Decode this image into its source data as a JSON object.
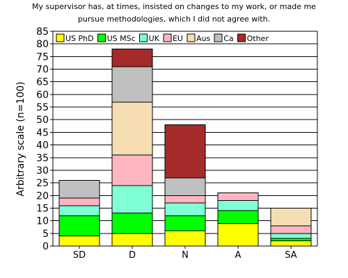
{
  "chart_data": {
    "type": "bar",
    "stacked": true,
    "title": [
      "My supervisor has, at times, insisted on changes to my work, or made me",
      "pursue methodologies, which I did not agree with."
    ],
    "xlabel": "",
    "ylabel": "Arbitrary scale (n=100)",
    "ylim": [
      0,
      85
    ],
    "yticks": [
      0,
      5,
      10,
      15,
      20,
      25,
      30,
      35,
      40,
      45,
      50,
      55,
      60,
      65,
      70,
      75,
      80,
      85
    ],
    "grid": true,
    "legend_position": "top-left",
    "categories": [
      "SD",
      "D",
      "N",
      "A",
      "SA"
    ],
    "series": [
      {
        "name": "US PhD",
        "color": "#ffff00",
        "values": [
          4,
          5,
          6,
          9,
          2
        ]
      },
      {
        "name": "US MSc",
        "color": "#00ff00",
        "values": [
          8,
          8,
          6,
          5,
          1
        ]
      },
      {
        "name": "UK",
        "color": "#80ffd4",
        "values": [
          4,
          11,
          5,
          4,
          2
        ]
      },
      {
        "name": "EU",
        "color": "#ffb6c1",
        "values": [
          3,
          12,
          3,
          3,
          3
        ]
      },
      {
        "name": "Aus",
        "color": "#f5deb3",
        "values": [
          0,
          21,
          0,
          0,
          7
        ]
      },
      {
        "name": "Ca",
        "color": "#c0c0c0",
        "values": [
          7,
          14,
          7,
          0,
          0
        ]
      },
      {
        "name": "Other",
        "color": "#a52a2a",
        "values": [
          0,
          7,
          21,
          0,
          0
        ]
      }
    ]
  }
}
